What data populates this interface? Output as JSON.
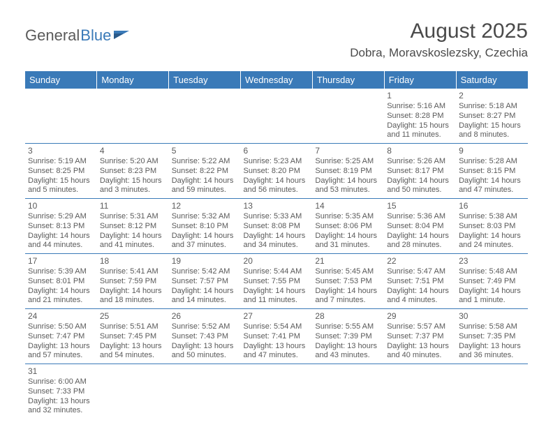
{
  "brand": {
    "part1": "General",
    "part2": "Blue"
  },
  "title": "August 2025",
  "location": "Dobra, Moravskoslezsky, Czechia",
  "colors": {
    "header_bg": "#3a7ab8",
    "header_text": "#ffffff",
    "row_border": "#3a7ab8",
    "body_text": "#5a5a5a",
    "bg": "#ffffff"
  },
  "day_headers": [
    "Sunday",
    "Monday",
    "Tuesday",
    "Wednesday",
    "Thursday",
    "Friday",
    "Saturday"
  ],
  "weeks": [
    [
      null,
      null,
      null,
      null,
      null,
      {
        "n": "1",
        "rise": "Sunrise: 5:16 AM",
        "set": "Sunset: 8:28 PM",
        "dl1": "Daylight: 15 hours",
        "dl2": "and 11 minutes."
      },
      {
        "n": "2",
        "rise": "Sunrise: 5:18 AM",
        "set": "Sunset: 8:27 PM",
        "dl1": "Daylight: 15 hours",
        "dl2": "and 8 minutes."
      }
    ],
    [
      {
        "n": "3",
        "rise": "Sunrise: 5:19 AM",
        "set": "Sunset: 8:25 PM",
        "dl1": "Daylight: 15 hours",
        "dl2": "and 5 minutes."
      },
      {
        "n": "4",
        "rise": "Sunrise: 5:20 AM",
        "set": "Sunset: 8:23 PM",
        "dl1": "Daylight: 15 hours",
        "dl2": "and 3 minutes."
      },
      {
        "n": "5",
        "rise": "Sunrise: 5:22 AM",
        "set": "Sunset: 8:22 PM",
        "dl1": "Daylight: 14 hours",
        "dl2": "and 59 minutes."
      },
      {
        "n": "6",
        "rise": "Sunrise: 5:23 AM",
        "set": "Sunset: 8:20 PM",
        "dl1": "Daylight: 14 hours",
        "dl2": "and 56 minutes."
      },
      {
        "n": "7",
        "rise": "Sunrise: 5:25 AM",
        "set": "Sunset: 8:19 PM",
        "dl1": "Daylight: 14 hours",
        "dl2": "and 53 minutes."
      },
      {
        "n": "8",
        "rise": "Sunrise: 5:26 AM",
        "set": "Sunset: 8:17 PM",
        "dl1": "Daylight: 14 hours",
        "dl2": "and 50 minutes."
      },
      {
        "n": "9",
        "rise": "Sunrise: 5:28 AM",
        "set": "Sunset: 8:15 PM",
        "dl1": "Daylight: 14 hours",
        "dl2": "and 47 minutes."
      }
    ],
    [
      {
        "n": "10",
        "rise": "Sunrise: 5:29 AM",
        "set": "Sunset: 8:13 PM",
        "dl1": "Daylight: 14 hours",
        "dl2": "and 44 minutes."
      },
      {
        "n": "11",
        "rise": "Sunrise: 5:31 AM",
        "set": "Sunset: 8:12 PM",
        "dl1": "Daylight: 14 hours",
        "dl2": "and 41 minutes."
      },
      {
        "n": "12",
        "rise": "Sunrise: 5:32 AM",
        "set": "Sunset: 8:10 PM",
        "dl1": "Daylight: 14 hours",
        "dl2": "and 37 minutes."
      },
      {
        "n": "13",
        "rise": "Sunrise: 5:33 AM",
        "set": "Sunset: 8:08 PM",
        "dl1": "Daylight: 14 hours",
        "dl2": "and 34 minutes."
      },
      {
        "n": "14",
        "rise": "Sunrise: 5:35 AM",
        "set": "Sunset: 8:06 PM",
        "dl1": "Daylight: 14 hours",
        "dl2": "and 31 minutes."
      },
      {
        "n": "15",
        "rise": "Sunrise: 5:36 AM",
        "set": "Sunset: 8:04 PM",
        "dl1": "Daylight: 14 hours",
        "dl2": "and 28 minutes."
      },
      {
        "n": "16",
        "rise": "Sunrise: 5:38 AM",
        "set": "Sunset: 8:03 PM",
        "dl1": "Daylight: 14 hours",
        "dl2": "and 24 minutes."
      }
    ],
    [
      {
        "n": "17",
        "rise": "Sunrise: 5:39 AM",
        "set": "Sunset: 8:01 PM",
        "dl1": "Daylight: 14 hours",
        "dl2": "and 21 minutes."
      },
      {
        "n": "18",
        "rise": "Sunrise: 5:41 AM",
        "set": "Sunset: 7:59 PM",
        "dl1": "Daylight: 14 hours",
        "dl2": "and 18 minutes."
      },
      {
        "n": "19",
        "rise": "Sunrise: 5:42 AM",
        "set": "Sunset: 7:57 PM",
        "dl1": "Daylight: 14 hours",
        "dl2": "and 14 minutes."
      },
      {
        "n": "20",
        "rise": "Sunrise: 5:44 AM",
        "set": "Sunset: 7:55 PM",
        "dl1": "Daylight: 14 hours",
        "dl2": "and 11 minutes."
      },
      {
        "n": "21",
        "rise": "Sunrise: 5:45 AM",
        "set": "Sunset: 7:53 PM",
        "dl1": "Daylight: 14 hours",
        "dl2": "and 7 minutes."
      },
      {
        "n": "22",
        "rise": "Sunrise: 5:47 AM",
        "set": "Sunset: 7:51 PM",
        "dl1": "Daylight: 14 hours",
        "dl2": "and 4 minutes."
      },
      {
        "n": "23",
        "rise": "Sunrise: 5:48 AM",
        "set": "Sunset: 7:49 PM",
        "dl1": "Daylight: 14 hours",
        "dl2": "and 1 minute."
      }
    ],
    [
      {
        "n": "24",
        "rise": "Sunrise: 5:50 AM",
        "set": "Sunset: 7:47 PM",
        "dl1": "Daylight: 13 hours",
        "dl2": "and 57 minutes."
      },
      {
        "n": "25",
        "rise": "Sunrise: 5:51 AM",
        "set": "Sunset: 7:45 PM",
        "dl1": "Daylight: 13 hours",
        "dl2": "and 54 minutes."
      },
      {
        "n": "26",
        "rise": "Sunrise: 5:52 AM",
        "set": "Sunset: 7:43 PM",
        "dl1": "Daylight: 13 hours",
        "dl2": "and 50 minutes."
      },
      {
        "n": "27",
        "rise": "Sunrise: 5:54 AM",
        "set": "Sunset: 7:41 PM",
        "dl1": "Daylight: 13 hours",
        "dl2": "and 47 minutes."
      },
      {
        "n": "28",
        "rise": "Sunrise: 5:55 AM",
        "set": "Sunset: 7:39 PM",
        "dl1": "Daylight: 13 hours",
        "dl2": "and 43 minutes."
      },
      {
        "n": "29",
        "rise": "Sunrise: 5:57 AM",
        "set": "Sunset: 7:37 PM",
        "dl1": "Daylight: 13 hours",
        "dl2": "and 40 minutes."
      },
      {
        "n": "30",
        "rise": "Sunrise: 5:58 AM",
        "set": "Sunset: 7:35 PM",
        "dl1": "Daylight: 13 hours",
        "dl2": "and 36 minutes."
      }
    ],
    [
      {
        "n": "31",
        "rise": "Sunrise: 6:00 AM",
        "set": "Sunset: 7:33 PM",
        "dl1": "Daylight: 13 hours",
        "dl2": "and 32 minutes."
      },
      null,
      null,
      null,
      null,
      null,
      null
    ]
  ]
}
